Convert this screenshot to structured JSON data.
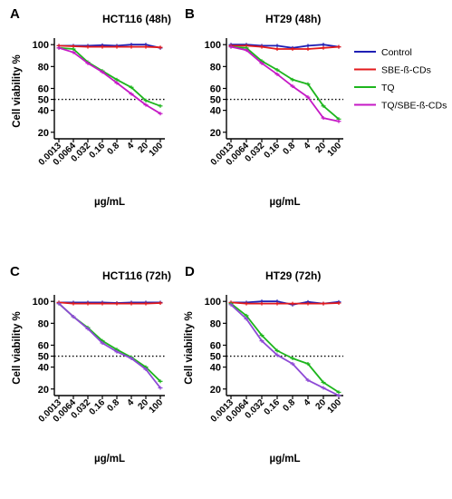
{
  "chart_data": [
    {
      "panel": "A",
      "type": "line",
      "title": "HCT116 (48h)",
      "xlabel": "µg/mL",
      "ylabel": "Cell viability %",
      "categories": [
        "0.0013",
        "0.0064",
        "0.032",
        "0.16",
        "0.8",
        "4",
        "20",
        "100"
      ],
      "yticks": [
        20,
        40,
        50,
        60,
        80,
        100
      ],
      "ylim": [
        14,
        101
      ],
      "reference_line": 50,
      "series": [
        {
          "name": "Control",
          "color": "#1f1fb4",
          "values": [
            99,
            99,
            99,
            99.5,
            99,
            100,
            100,
            97
          ]
        },
        {
          "name": "SBE-ß-CDs",
          "color": "#e31a1c",
          "values": [
            99,
            98.5,
            98,
            98,
            98,
            98,
            98,
            97.5
          ]
        },
        {
          "name": "TQ",
          "color": "#1db51d",
          "values": [
            97,
            96,
            84,
            76,
            68,
            61,
            49,
            44
          ]
        },
        {
          "name": "TQ/SBE-ß-CDs",
          "color": "#c519c5",
          "values": [
            97,
            93,
            83,
            75,
            65,
            55,
            45,
            37
          ]
        }
      ]
    },
    {
      "panel": "B",
      "type": "line",
      "title": "HT29 (48h)",
      "xlabel": "µg/mL",
      "ylabel": "",
      "categories": [
        "0.0013",
        "0.0064",
        "0.032",
        "0.16",
        "0.8",
        "4",
        "20",
        "100"
      ],
      "yticks": [
        20,
        40,
        50,
        60,
        80,
        100
      ],
      "ylim": [
        14,
        101
      ],
      "reference_line": 50,
      "series": [
        {
          "name": "Control",
          "color": "#1f1fb4",
          "values": [
            100,
            100,
            99,
            99,
            97,
            99,
            100,
            98
          ]
        },
        {
          "name": "SBE-ß-CDs",
          "color": "#e31a1c",
          "values": [
            99,
            99,
            98,
            96,
            96,
            96,
            97,
            98
          ]
        },
        {
          "name": "TQ",
          "color": "#1db51d",
          "values": [
            98,
            97,
            85,
            77,
            68,
            64,
            44,
            32
          ]
        },
        {
          "name": "TQ/SBE-ß-CDs",
          "color": "#c519c5",
          "values": [
            98,
            95,
            83,
            73,
            62,
            52,
            33,
            30
          ]
        }
      ]
    },
    {
      "panel": "C",
      "type": "line",
      "title": "HCT116 (72h)",
      "xlabel": "µg/mL",
      "ylabel": "Cell viability %",
      "categories": [
        "0.0013",
        "0.0064",
        "0.032",
        "0.16",
        "0.8",
        "4",
        "20",
        "100"
      ],
      "yticks": [
        20,
        40,
        50,
        60,
        80,
        100
      ],
      "ylim": [
        14,
        101
      ],
      "reference_line": 50,
      "series": [
        {
          "name": "Control",
          "color": "#1f1fb4",
          "values": [
            99,
            99,
            99,
            99,
            98.5,
            99,
            99,
            99
          ]
        },
        {
          "name": "SBE-ß-CDs",
          "color": "#e31a1c",
          "values": [
            99,
            98,
            98,
            98,
            98,
            98,
            98,
            98.5
          ]
        },
        {
          "name": "TQ",
          "color": "#1db51d",
          "values": [
            98,
            86,
            76,
            64,
            56,
            49,
            40,
            27
          ]
        },
        {
          "name": "TQ/SBE-ß-CDs",
          "color": "#8e4ad6",
          "values": [
            98,
            86,
            75,
            62,
            54,
            48,
            38,
            21
          ]
        }
      ]
    },
    {
      "panel": "D",
      "type": "line",
      "title": "HT29 (72h)",
      "xlabel": "µg/mL",
      "ylabel": "Cell viability %",
      "categories": [
        "0.0013",
        "0.0064",
        "0.032",
        "0.16",
        "0.8",
        "4",
        "20",
        "100"
      ],
      "yticks": [
        20,
        40,
        50,
        60,
        80,
        100
      ],
      "ylim": [
        14,
        101
      ],
      "reference_line": 50,
      "series": [
        {
          "name": "Control",
          "color": "#1f1fb4",
          "values": [
            99,
            99,
            100,
            100,
            97,
            99.5,
            98,
            99.5
          ]
        },
        {
          "name": "SBE-ß-CDs",
          "color": "#e31a1c",
          "values": [
            99,
            98,
            98,
            98,
            98,
            98,
            98,
            98.5
          ]
        },
        {
          "name": "TQ",
          "color": "#1db51d",
          "values": [
            98,
            87,
            69,
            55,
            48,
            43,
            26,
            17
          ]
        },
        {
          "name": "TQ/SBE-ß-CDs",
          "color": "#8e4ad6",
          "values": [
            97,
            84,
            64,
            51,
            43,
            28,
            21,
            14
          ]
        }
      ]
    }
  ],
  "legend": {
    "position": "right",
    "items": [
      {
        "label": "Control",
        "color": "#1f1fb4"
      },
      {
        "label": "SBE-ß-CDs",
        "color": "#e31a1c"
      },
      {
        "label": "TQ",
        "color": "#1db51d"
      },
      {
        "label": "TQ/SBE-ß-CDs",
        "color": "#c519c5"
      }
    ]
  }
}
